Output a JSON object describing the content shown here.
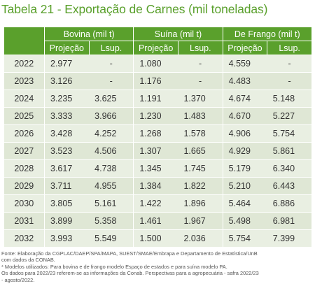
{
  "title": "Tabela 21 - Exportação de Carnes (mil toneladas)",
  "groups": [
    "Bovina (mil t)",
    "Suína (mil t)",
    "De Frango (mil t)"
  ],
  "subheaders": [
    "Projeção",
    "Lsup.",
    "Projeção",
    "Lsup.",
    "Projeção",
    "Lsup."
  ],
  "rows": [
    {
      "year": "2022",
      "cells": [
        "2.977",
        "-",
        "1.080",
        "-",
        "4.559",
        "-"
      ]
    },
    {
      "year": "2023",
      "cells": [
        "3.126",
        "-",
        "1.176",
        "-",
        "4.483",
        "-"
      ]
    },
    {
      "year": "2024",
      "cells": [
        "3.235",
        "3.625",
        "1.191",
        "1.370",
        "4.674",
        "5.148"
      ]
    },
    {
      "year": "2025",
      "cells": [
        "3.333",
        "3.966",
        "1.230",
        "1.483",
        "4.670",
        "5.227"
      ]
    },
    {
      "year": "2026",
      "cells": [
        "3.428",
        "4.252",
        "1.268",
        "1.578",
        "4.906",
        "5.754"
      ]
    },
    {
      "year": "2027",
      "cells": [
        "3.523",
        "4.506",
        "1.307",
        "1.665",
        "4.929",
        "5.861"
      ]
    },
    {
      "year": "2028",
      "cells": [
        "3.617",
        "4.738",
        "1.345",
        "1.745",
        "5.179",
        "6.340"
      ]
    },
    {
      "year": "2029",
      "cells": [
        "3.711",
        "4.955",
        "1.384",
        "1.822",
        "5.210",
        "6.443"
      ]
    },
    {
      "year": "2030",
      "cells": [
        "3.805",
        "5.161",
        "1.422",
        "1.896",
        "5.464",
        "6.886"
      ]
    },
    {
      "year": "2031",
      "cells": [
        "3.899",
        "5.358",
        "1.461",
        "1.967",
        "5.498",
        "6.981"
      ]
    },
    {
      "year": "2032",
      "cells": [
        "3.993",
        "5.549",
        "1.500",
        "2.036",
        "5.754",
        "7.399"
      ]
    }
  ],
  "notes": [
    "Fonte: Elaboração da CGPLAC/DAEP/SPA/MAPA, SUEST/SMAE/Embrapa e Departamento de Estatística/UnB",
    "com dados da CONAB.",
    "* Modelos utilizados: Para bovina e de frango modelo Espaço de estados e para suína modelo PA.",
    "Os dados para 2022/23 referem-se as informações da Conab. Perspectivas para a agropecuária - safra 2022/23",
    "- agosto/2022."
  ],
  "colors": {
    "header_green": "#5aa02c",
    "row_light": "#e9efe2",
    "row_dark": "#dfe7d5"
  }
}
